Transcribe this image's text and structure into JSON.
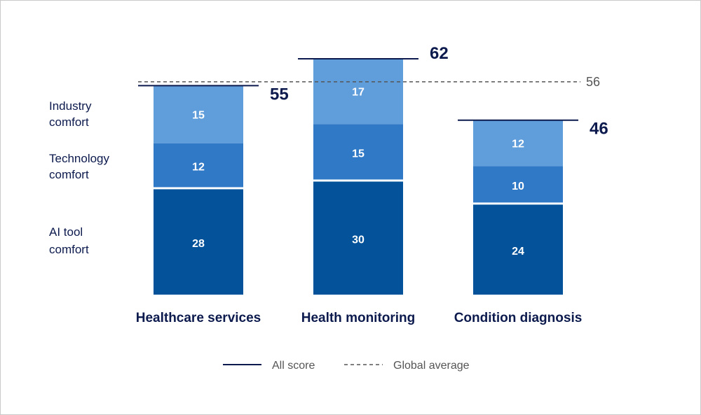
{
  "chart_data": {
    "type": "bar",
    "stacked": true,
    "categories": [
      "Healthcare services",
      "Health monitoring",
      "Condition diagnosis"
    ],
    "series": [
      {
        "name": "AI tool comfort",
        "values": [
          28,
          30,
          24
        ],
        "color": "#03529a"
      },
      {
        "name": "Technology comfort",
        "values": [
          12,
          15,
          10
        ],
        "color": "#3079c7"
      },
      {
        "name": "Industry comfort",
        "values": [
          15,
          17,
          12
        ],
        "color": "#609ddb"
      }
    ],
    "series_labels": [
      [
        "AI tool",
        "comfort"
      ],
      [
        "Technology",
        "comfort"
      ],
      [
        "Industry",
        "comfort"
      ]
    ],
    "totals": [
      55,
      62,
      46
    ],
    "global_average": 56,
    "ylim": [
      0,
      62
    ],
    "legend": {
      "position": "bottom",
      "items": [
        {
          "label": "All score",
          "style": "solid",
          "color": "#0c1a4d"
        },
        {
          "label": "Global average",
          "style": "dashed",
          "color": "#555555"
        }
      ]
    },
    "title": "",
    "xlabel": "",
    "ylabel": ""
  }
}
